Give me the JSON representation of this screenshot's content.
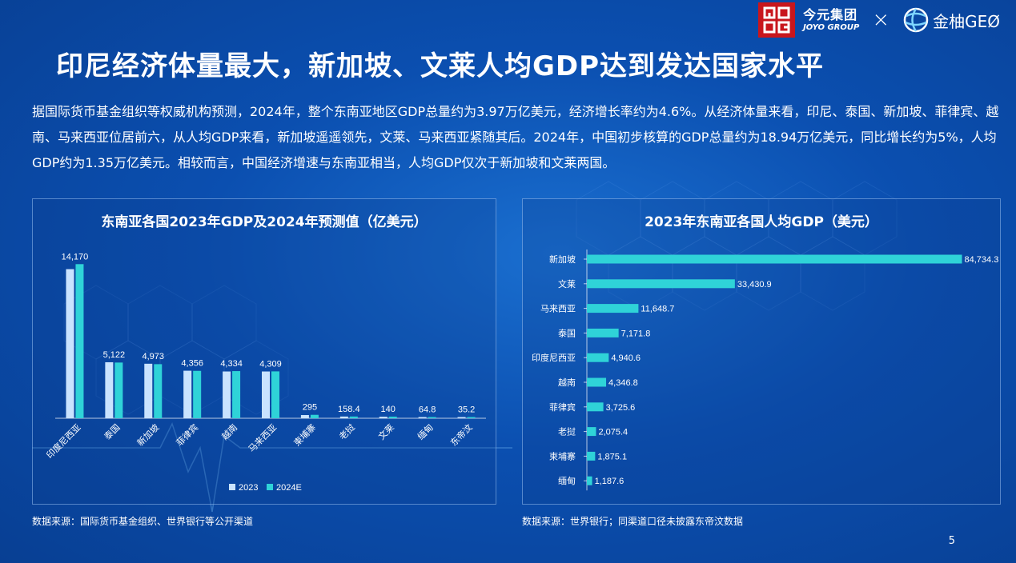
{
  "header": {
    "title": "印尼经济体量最大，新加坡、文莱人均GDP达到发达国家水平",
    "brand1_cn": "今元集团",
    "brand1_en": "JOYO GROUP",
    "times": "×",
    "brand2": "金柚GEØ"
  },
  "intro": "据国际货币基金组织等权威机构预测，2024年，整个东南亚地区GDP总量约为3.97万亿美元，经济增长率约为4.6%。从经济体量来看，印尼、泰国、新加坡、菲律宾、越南、马来西亚位居前六，从人均GDP来看，新加坡遥遥领先，文莱、马来西亚紧随其后。2024年，中国初步核算的GDP总量约为18.94万亿美元，同比增长约为5%，人均GDP约为1.35万亿美元。相较而言，中国经济增速与东南亚相当，人均GDP仅次于新加坡和文莱两国。",
  "colors": {
    "series2023": "#c9e3ff",
    "series2024": "#2fd3d8",
    "bar": "#2fd3d8"
  },
  "chart_data": [
    {
      "type": "bar",
      "title": "东南亚各国2023年GDP及2024年预测值（亿美元）",
      "categories": [
        "印度尼西亚",
        "泰国",
        "新加坡",
        "菲律宾",
        "越南",
        "马来西亚",
        "柬埔寨",
        "老挝",
        "文莱",
        "缅甸",
        "东帝汶"
      ],
      "series": [
        {
          "name": "2023",
          "values": [
            13710,
            5149,
            5012,
            4370,
            4300,
            4300,
            295,
            158.4,
            140,
            64.8,
            35.2
          ]
        },
        {
          "name": "2024E",
          "values": [
            14170,
            5122,
            4973,
            4356,
            4334,
            4309,
            315,
            160,
            150,
            66,
            36
          ]
        }
      ],
      "labels": [
        "14,170",
        "5,122",
        "4,973",
        "4,356",
        "4,334",
        "4,309",
        "295",
        "158.4",
        "140",
        "64.8",
        "35.2"
      ],
      "ylim": [
        0,
        15000
      ],
      "legend": "bottom"
    },
    {
      "type": "bar",
      "orientation": "horizontal",
      "title": "2023年东南亚各国人均GDP（美元）",
      "categories": [
        "新加坡",
        "文莱",
        "马来西亚",
        "泰国",
        "印度尼西亚",
        "越南",
        "菲律宾",
        "老挝",
        "柬埔寨",
        "缅甸"
      ],
      "values": [
        84734.3,
        33430.9,
        11648.7,
        7171.8,
        4940.6,
        4346.8,
        3725.6,
        2075.4,
        1875.1,
        1187.6
      ],
      "labels": [
        "84,734.3",
        "33,430.9",
        "11,648.7",
        "7,171.8",
        "4,940.6",
        "4,346.8",
        "3,725.6",
        "2,075.4",
        "1,875.1",
        "1,187.6"
      ],
      "xlim": [
        0,
        85000
      ]
    }
  ],
  "source_left": "数据来源：国际货币基金组织、世界银行等公开渠道",
  "source_right": "数据来源：世界银行；同渠道口径未披露东帝汶数据",
  "page_number": "5"
}
